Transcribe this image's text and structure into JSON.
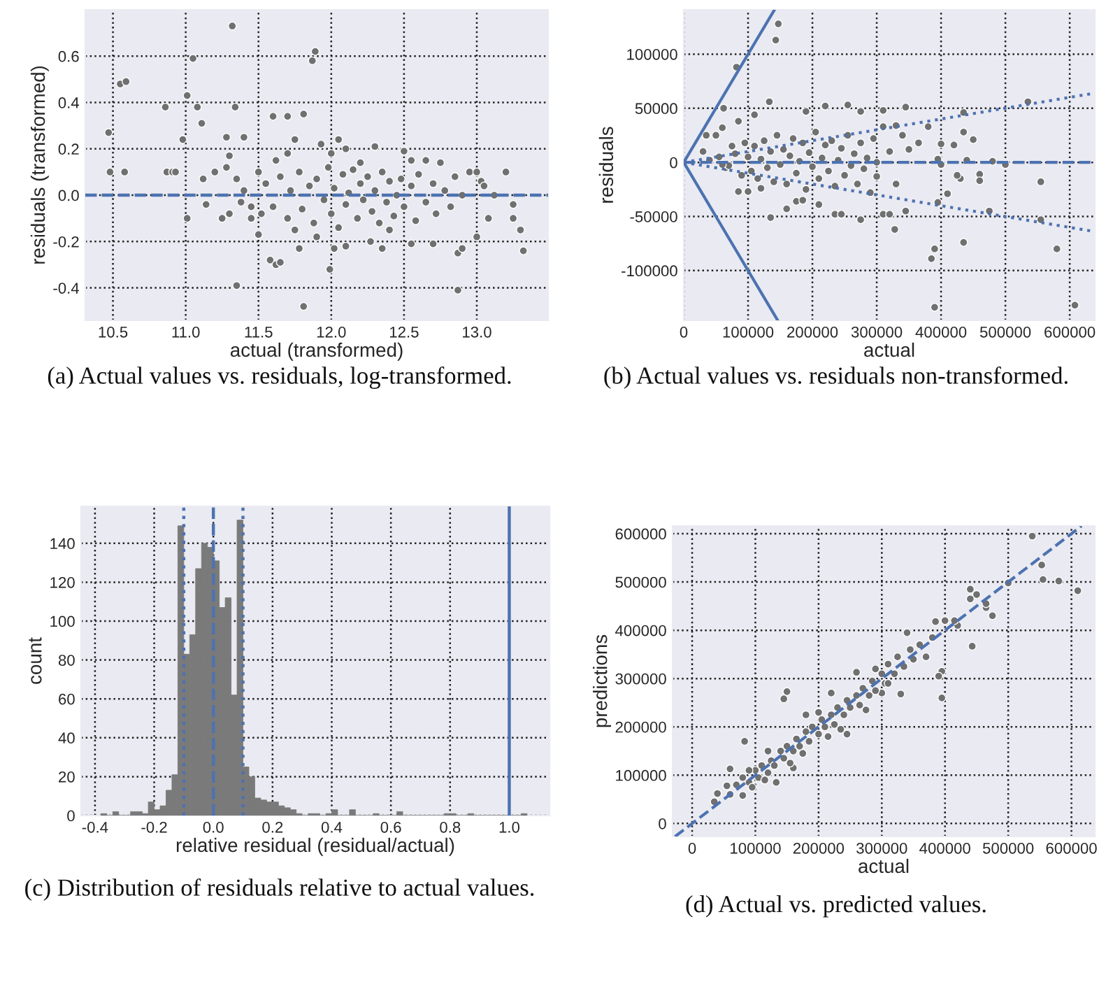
{
  "chart_data": [
    {
      "type": "scatter",
      "xlabel": "actual (transformed)",
      "ylabel": "residuals (transformed)",
      "annotations": [
        "(a) Actual values vs. residuals, log-transformed."
      ],
      "xlim": [
        10.31,
        13.49
      ],
      "ylim": [
        -0.54,
        0.8
      ],
      "xticks": [
        10.5,
        {
          "value": 11,
          "label": "11.0"
        },
        11.5,
        {
          "value": 12,
          "label": "12.0"
        },
        12.5,
        {
          "value": 13,
          "label": "13.0"
        }
      ],
      "yticks": [
        -0.4,
        -0.2,
        {
          "value": 0,
          "label": "0.0"
        },
        0.2,
        0.4,
        0.6
      ],
      "grid": true,
      "ref_lines": [
        {
          "axis": "y",
          "value": 0,
          "color": "#4c72b0",
          "line_style": "dashed"
        }
      ],
      "series": [
        {
          "type": "scatter",
          "marker": "circle",
          "color": "#707070",
          "x": [
            10.47,
            10.48,
            10.55,
            10.59,
            10.58,
            10.86,
            10.87,
            10.91,
            10.93,
            10.98,
            11.01,
            11.05,
            11.08,
            11.11,
            11.12,
            11.14,
            11.01,
            11.32,
            11.87,
            11.89,
            11.34,
            11.6,
            11.7,
            11.81,
            11.28,
            11.4,
            11.75,
            11.93,
            12.05,
            12.3,
            12.5,
            12.65,
            12.55,
            12.75,
            11.35,
            11.81,
            11.99,
            11.58,
            11.62,
            11.65,
            11.78,
            11.5,
            12.02,
            12.87,
            12.87,
            12.9,
            13.0,
            13.2,
            13.25,
            13.25,
            13.3,
            13.32,
            13.08,
            13.12,
            13.03,
            13.05,
            12.85,
            12.95,
            13.0,
            12.7,
            12.55,
            12.35,
            12.1,
            12.27,
            11.25,
            11.28,
            11.3,
            11.2,
            11.3,
            11.45,
            11.55,
            11.6,
            11.65,
            11.7,
            11.72,
            11.78,
            11.8,
            11.85,
            11.88,
            11.9,
            11.95,
            11.98,
            12.0,
            12.02,
            12.05,
            12.08,
            12.1,
            12.12,
            12.15,
            12.18,
            12.2,
            12.22,
            12.25,
            12.28,
            12.3,
            12.33,
            12.35,
            12.38,
            12.4,
            12.43,
            12.45,
            12.48,
            12.5,
            12.55,
            12.58,
            12.6,
            12.65,
            12.7,
            12.72,
            12.78,
            12.82,
            12.9,
            11.4,
            11.45,
            11.5,
            11.52,
            11.35,
            11.38,
            11.62,
            11.75,
            12.0,
            12.1,
            12.4,
            11.9,
            12.2,
            11.7
          ],
          "values": [
            0.27,
            0.1,
            0.48,
            0.49,
            0.1,
            0.38,
            0.1,
            0.1,
            0.1,
            0.24,
            0.43,
            0.59,
            0.38,
            0.31,
            0.07,
            -0.04,
            -0.1,
            0.73,
            0.58,
            0.62,
            0.38,
            0.34,
            0.34,
            0.35,
            0.25,
            0.25,
            0.24,
            0.22,
            0.24,
            0.21,
            0.19,
            0.15,
            0.15,
            0.14,
            -0.39,
            -0.48,
            -0.32,
            -0.28,
            -0.3,
            -0.29,
            -0.23,
            -0.17,
            -0.23,
            -0.41,
            -0.25,
            -0.23,
            -0.18,
            0.1,
            -0.04,
            -0.1,
            -0.15,
            -0.24,
            -0.1,
            0.0,
            0.06,
            0.04,
            0.08,
            0.1,
            0.1,
            -0.21,
            -0.21,
            -0.23,
            -0.22,
            -0.2,
            -0.1,
            0.12,
            0.17,
            0.1,
            -0.08,
            -0.1,
            0.05,
            -0.05,
            0.08,
            -0.1,
            0.02,
            0.1,
            -0.06,
            0.04,
            -0.12,
            0.07,
            -0.02,
            0.12,
            -0.08,
            0.03,
            -0.14,
            0.09,
            -0.04,
            0.01,
            0.11,
            -0.1,
            0.05,
            -0.02,
            0.08,
            -0.07,
            0.02,
            -0.12,
            0.1,
            -0.03,
            0.06,
            -0.09,
            0.0,
            0.07,
            -0.05,
            0.04,
            -0.11,
            0.09,
            -0.03,
            0.05,
            -0.08,
            0.02,
            -0.05,
            0.0,
            0.02,
            -0.05,
            0.1,
            -0.08,
            0.07,
            -0.03,
            0.15,
            -0.15,
            0.18,
            0.2,
            -0.15,
            -0.18,
            0.14,
            0.18
          ]
        }
      ]
    },
    {
      "type": "scatter",
      "xlabel": "actual",
      "ylabel": "residuals",
      "annotations": [
        "(b) Actual values vs. residuals non-transformed."
      ],
      "xlim": [
        0,
        639000
      ],
      "ylim": [
        -146000,
        141000
      ],
      "xticks": [
        0,
        100000,
        200000,
        300000,
        400000,
        500000,
        600000
      ],
      "yticks": [
        -100000,
        -50000,
        0,
        50000,
        100000
      ],
      "grid": true,
      "ref_lines": [
        {
          "axis": "y",
          "value": 0,
          "color": "#4c72b0",
          "line_style": "dashed"
        }
      ],
      "series": [
        {
          "type": "line",
          "color": "#4c72b0",
          "line_style": "solid",
          "x": [
            0,
            141000
          ],
          "values": [
            0,
            141000
          ]
        },
        {
          "type": "line",
          "color": "#4c72b0",
          "line_style": "solid",
          "x": [
            0,
            146000
          ],
          "values": [
            0,
            -146000
          ]
        },
        {
          "type": "line",
          "color": "#4c72b0",
          "line_style": "dotted",
          "x": [
            0,
            639000
          ],
          "values": [
            0,
            64000
          ]
        },
        {
          "type": "line",
          "color": "#4c72b0",
          "line_style": "dotted",
          "x": [
            0,
            639000
          ],
          "values": [
            0,
            -64000
          ]
        },
        {
          "type": "scatter",
          "marker": "circle",
          "color": "#707070",
          "x": [
            147000,
            143000,
            82000,
            62000,
            133000,
            255000,
            220000,
            310000,
            345000,
            535000,
            435000,
            450000,
            435000,
            380000,
            400000,
            420000,
            110000,
            35000,
            30000,
            50000,
            60000,
            85000,
            190000,
            275000,
            390000,
            385000,
            390000,
            435000,
            328000,
            275000,
            135000,
            580000,
            608000,
            555000,
            555000,
            500000,
            480000,
            460000,
            460000,
            475000,
            410000,
            395000,
            345000,
            310000,
            320000,
            235000,
            245000,
            210000,
            160000,
            175000,
            185000,
            100000,
            85000,
            120000,
            65000,
            40000,
            430000,
            425000,
            400000,
            395000,
            440000,
            365000,
            350000,
            310000,
            330000,
            300000,
            100000,
            105000,
            110000,
            115000,
            120000,
            125000,
            130000,
            135000,
            140000,
            145000,
            150000,
            155000,
            160000,
            165000,
            170000,
            175000,
            180000,
            185000,
            190000,
            195000,
            200000,
            205000,
            210000,
            215000,
            220000,
            225000,
            230000,
            235000,
            240000,
            245000,
            250000,
            255000,
            260000,
            265000,
            270000,
            275000,
            280000,
            285000,
            290000,
            295000,
            80000,
            70000,
            90000,
            95000,
            75000,
            60000,
            55000,
            320000,
            330000,
            340000,
            300000
          ],
          "values": [
            128000,
            113000,
            88000,
            50000,
            56000,
            53000,
            52000,
            48000,
            51000,
            56000,
            46000,
            21000,
            28000,
            33000,
            17000,
            16000,
            44000,
            25000,
            10000,
            25000,
            32000,
            38000,
            47000,
            47000,
            -80000,
            -89000,
            -134000,
            -74000,
            -62000,
            -53000,
            -51000,
            -80000,
            -132000,
            -53000,
            -18000,
            -2000,
            1000,
            -11000,
            -17000,
            -45000,
            -29000,
            -37000,
            -45000,
            -48000,
            -48000,
            -48000,
            -48000,
            -39000,
            -43000,
            -36000,
            -35000,
            -27000,
            -27000,
            -24000,
            -5000,
            2000,
            -15000,
            -12000,
            -2000,
            3000,
            2000,
            18000,
            12000,
            33000,
            34000,
            -13000,
            5000,
            -8000,
            15000,
            -15000,
            3000,
            20000,
            -5000,
            10000,
            -18000,
            25000,
            -2000,
            12000,
            -20000,
            6000,
            22000,
            -10000,
            1000,
            18000,
            -25000,
            9000,
            -4000,
            28000,
            -15000,
            4000,
            16000,
            -8000,
            20000,
            -22000,
            2000,
            13000,
            -12000,
            25000,
            -3000,
            8000,
            -20000,
            18000,
            -6000,
            4000,
            -28000,
            22000,
            8000,
            -3000,
            -12000,
            18000,
            15000,
            -2000,
            5000,
            10000,
            -20000,
            25000,
            0
          ]
        }
      ]
    },
    {
      "type": "histogram",
      "xlabel": "relative residual (residual/actual)",
      "ylabel": "count",
      "annotations": [
        "(c) Distribution of residuals relative to actual values."
      ],
      "xlim": [
        -0.447,
        1.136
      ],
      "ylim": [
        0,
        159
      ],
      "xticks": [
        -0.4,
        -0.2,
        {
          "value": 0,
          "label": "0.0"
        },
        0.2,
        0.4,
        0.6,
        0.8,
        {
          "value": 1,
          "label": "1.0"
        }
      ],
      "yticks": [
        0,
        20,
        40,
        60,
        80,
        100,
        120,
        140
      ],
      "grid": true,
      "color": "#7a7a7a",
      "ref_lines": [
        {
          "axis": "x",
          "value": -0.1,
          "color": "#4c72b0",
          "line_style": "dotted"
        },
        {
          "axis": "x",
          "value": 0,
          "color": "#4c72b0",
          "line_style": "dashed"
        },
        {
          "axis": "x",
          "value": 0.1,
          "color": "#4c72b0",
          "line_style": "dotted"
        },
        {
          "axis": "x",
          "value": 1.0,
          "color": "#4c72b0",
          "line_style": "solid"
        }
      ],
      "bins": [
        -0.38,
        -0.36,
        -0.34,
        -0.32,
        -0.3,
        -0.28,
        -0.26,
        -0.24,
        -0.22,
        -0.2,
        -0.18,
        -0.16,
        -0.14,
        -0.12,
        -0.1,
        -0.08,
        -0.06,
        -0.04,
        -0.02,
        0.0,
        0.02,
        0.04,
        0.06,
        0.08,
        0.1,
        0.12,
        0.14,
        0.16,
        0.18,
        0.2,
        0.22,
        0.24,
        0.26,
        0.28,
        0.3,
        0.32,
        0.34,
        0.36,
        0.38,
        0.4,
        0.42,
        0.44,
        0.46,
        0.48,
        0.5,
        0.52,
        0.54,
        0.56,
        0.58,
        0.6,
        0.62,
        0.64,
        0.66,
        0.68,
        0.7,
        0.72,
        0.74,
        0.76,
        0.78,
        0.8,
        0.82,
        0.84,
        0.86,
        0.88,
        0.9,
        0.92,
        0.94,
        0.96,
        0.98,
        1.0,
        1.02,
        1.04,
        1.06
      ],
      "values": [
        1,
        0,
        2,
        0,
        0,
        2,
        2,
        1,
        7,
        3,
        5,
        13,
        21,
        149,
        83,
        93,
        127,
        140,
        138,
        131,
        107,
        112,
        62,
        152,
        25,
        20,
        9,
        8,
        7,
        7,
        5,
        4,
        3,
        1,
        0,
        1,
        1,
        0,
        1,
        3,
        0,
        0,
        3,
        0,
        0,
        0,
        1,
        0,
        0,
        0,
        2,
        0,
        0,
        0,
        0,
        0,
        0,
        0,
        1,
        1,
        0,
        0,
        1,
        0,
        0,
        0,
        0,
        0,
        0,
        0,
        0,
        1
      ]
    },
    {
      "type": "scatter",
      "xlabel": "actual",
      "ylabel": "predictions",
      "annotations": [
        "(d) Actual vs. predicted values."
      ],
      "xlim": [
        -31000,
        637000
      ],
      "ylim": [
        -27000,
        616000
      ],
      "xticks": [
        0,
        100000,
        200000,
        300000,
        400000,
        500000,
        600000
      ],
      "yticks": [
        0,
        100000,
        200000,
        300000,
        400000,
        500000,
        600000
      ],
      "grid": true,
      "series": [
        {
          "type": "scatter",
          "marker": "circle",
          "color": "#707070",
          "x": [
            538000,
            553000,
            555000,
            580000,
            610000,
            500000,
            475000,
            465000,
            465000,
            450000,
            440000,
            440000,
            443000,
            420000,
            415000,
            400000,
            385000,
            395000,
            395000,
            390000,
            145000,
            150000,
            83000,
            133000,
            80000,
            35000,
            40000,
            55000,
            60000,
            120000,
            220000,
            260000,
            340000,
            330000,
            300000,
            275000,
            245000,
            160000,
            200000,
            180000,
            60000,
            70000,
            80000,
            90000,
            100000,
            105000,
            110000,
            120000,
            125000,
            130000,
            140000,
            145000,
            150000,
            160000,
            165000,
            170000,
            180000,
            185000,
            190000,
            200000,
            205000,
            210000,
            220000,
            225000,
            230000,
            240000,
            245000,
            250000,
            260000,
            265000,
            270000,
            280000,
            285000,
            290000,
            300000,
            305000,
            310000,
            320000,
            325000,
            335000,
            345000,
            350000,
            360000,
            370000,
            380000,
            90000,
            115000,
            175000,
            235000,
            290000,
            310000,
            95000,
            155000,
            215000
          ],
          "values": [
            595000,
            535000,
            505000,
            502000,
            482000,
            498000,
            430000,
            447000,
            455000,
            474000,
            485000,
            465000,
            367000,
            410000,
            420000,
            420000,
            418000,
            260000,
            315000,
            305000,
            258000,
            273000,
            170000,
            85000,
            58000,
            45000,
            62000,
            78000,
            113000,
            150000,
            270000,
            313000,
            395000,
            268000,
            270000,
            235000,
            185000,
            115000,
            230000,
            225000,
            60000,
            80000,
            95000,
            85000,
            110000,
            95000,
            120000,
            105000,
            130000,
            120000,
            150000,
            135000,
            160000,
            150000,
            175000,
            160000,
            190000,
            170000,
            200000,
            185000,
            215000,
            200000,
            225000,
            205000,
            240000,
            225000,
            255000,
            240000,
            265000,
            245000,
            280000,
            265000,
            295000,
            275000,
            310000,
            290000,
            330000,
            310000,
            345000,
            325000,
            360000,
            340000,
            370000,
            345000,
            385000,
            110000,
            90000,
            145000,
            195000,
            320000,
            290000,
            75000,
            125000,
            180000
          ]
        },
        {
          "type": "line",
          "color": "#4c72b0",
          "line_style": "dashed",
          "x": [
            -27000,
            616000
          ],
          "values": [
            -27000,
            616000
          ]
        }
      ]
    }
  ]
}
